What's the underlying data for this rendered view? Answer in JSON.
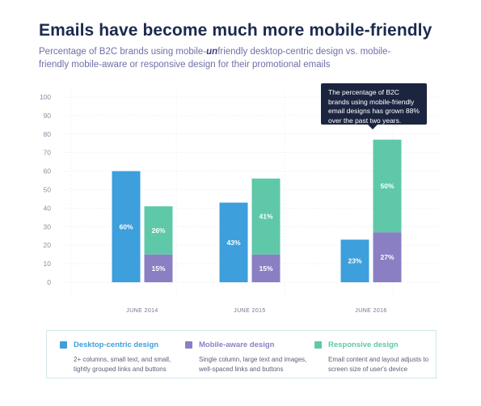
{
  "title": "Emails have become much more mobile-friendly",
  "subtitle": {
    "before": "Percentage of B2C brands using mobile-",
    "emph": "un",
    "after": "friendly desktop-centric design vs. mobile-friendly mobile-aware or responsive design for their promotional emails"
  },
  "callout": "The percentage of B2C brands using mobile-friendly email designs has grown 88% over the past two years.",
  "colors": {
    "desktop": "#3d9fdb",
    "mobile_aware": "#8b7fc3",
    "responsive": "#5ec8a8"
  },
  "legend": [
    {
      "key": "desktop",
      "name": "Desktop-centric design",
      "color": "#3d9fdb",
      "desc": "2+ columns, small text, and small, tightly grouped links and buttons"
    },
    {
      "key": "mobile_aware",
      "name": "Mobile-aware design",
      "color": "#8b7fc3",
      "desc": "Single column, large text and images, well-spaced links and buttons"
    },
    {
      "key": "responsive",
      "name": "Responsive design",
      "color": "#5ec8a8",
      "desc": "Email content and layout adjusts to screen size of user's device"
    }
  ],
  "chart_data": {
    "type": "bar",
    "categories": [
      "JUNE 2014",
      "JUNE 2015",
      "JUNE 2016"
    ],
    "ylim": [
      0,
      100
    ],
    "yticks": [
      0,
      10,
      20,
      30,
      40,
      50,
      60,
      70,
      80,
      90,
      100
    ],
    "series": [
      {
        "name": "Desktop-centric design",
        "key": "desktop",
        "stack": "left",
        "values": [
          60,
          43,
          23
        ],
        "labels": [
          "60%",
          "43%",
          "23%"
        ]
      },
      {
        "name": "Mobile-aware design",
        "key": "mobile_aware",
        "stack": "right",
        "values": [
          15,
          15,
          27
        ],
        "labels": [
          "15%",
          "15%",
          "27%"
        ]
      },
      {
        "name": "Responsive design",
        "key": "responsive",
        "stack": "right",
        "values": [
          26,
          41,
          50
        ],
        "labels": [
          "26%",
          "41%",
          "50%"
        ]
      }
    ],
    "legend_position": "bottom",
    "grid": true
  }
}
